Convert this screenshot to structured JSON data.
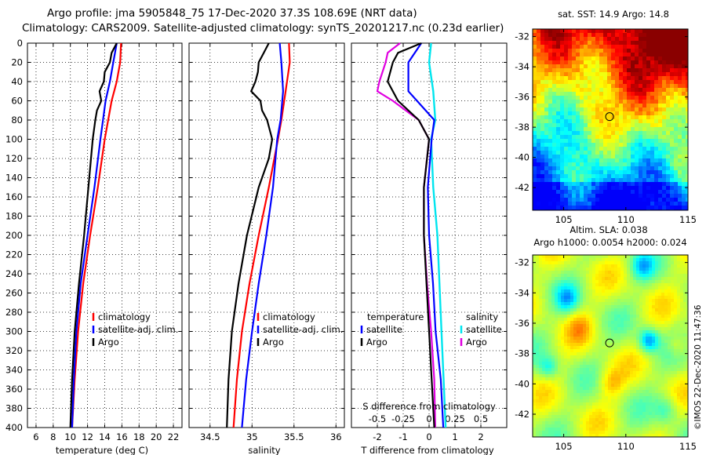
{
  "header": {
    "title_line1": "Argo profile: jma 5905848_75 17-Dec-2020 37.3S 108.69E (NRT data)",
    "title_line2": "Climatology: CARS2009. Satellite-adjusted climatology: synTS_20201217.nc (0.23d earlier)"
  },
  "colors": {
    "climatology": "#ff0000",
    "satellite": "#0000ff",
    "argo": "#000000",
    "salinity_satellite": "#00e5ee",
    "salinity_argo": "#e000e0"
  },
  "depth_ticks": [
    "0",
    "20",
    "40",
    "60",
    "80",
    "100",
    "120",
    "140",
    "160",
    "180",
    "200",
    "220",
    "240",
    "260",
    "280",
    "300",
    "320",
    "340",
    "360",
    "380",
    "400"
  ],
  "chart_data": [
    {
      "type": "line",
      "title": "Temperature profile",
      "xlabel": "temperature (deg C)",
      "ylabel": "depth",
      "xlim": [
        5,
        23
      ],
      "ylim": [
        400,
        0
      ],
      "xticks": [
        "6",
        "8",
        "10",
        "12",
        "14",
        "16",
        "18",
        "20",
        "22"
      ],
      "legend": [
        "climatology",
        "satellite-adj. clim.",
        "Argo"
      ],
      "series": [
        {
          "name": "climatology",
          "depth": [
            0,
            20,
            40,
            60,
            80,
            100,
            150,
            200,
            250,
            300,
            350,
            400
          ],
          "values": [
            15.9,
            15.8,
            15.4,
            14.8,
            14.4,
            14.0,
            13.2,
            12.3,
            11.5,
            10.9,
            10.5,
            10.2
          ]
        },
        {
          "name": "satellite-adj. clim.",
          "depth": [
            0,
            20,
            40,
            60,
            80,
            100,
            150,
            200,
            250,
            300,
            350,
            400
          ],
          "values": [
            15.4,
            15.0,
            14.6,
            14.1,
            13.8,
            13.5,
            12.8,
            12.0,
            11.2,
            10.7,
            10.4,
            10.2
          ]
        },
        {
          "name": "Argo",
          "depth": [
            0,
            10,
            20,
            30,
            40,
            50,
            60,
            70,
            80,
            100,
            120,
            150,
            200,
            250,
            300,
            350,
            400
          ],
          "values": [
            15.4,
            14.8,
            14.6,
            14.0,
            13.9,
            13.4,
            13.6,
            13.1,
            12.9,
            12.6,
            12.4,
            12.1,
            11.6,
            11.0,
            10.5,
            10.2,
            10.0
          ]
        }
      ]
    },
    {
      "type": "line",
      "title": "Salinity profile",
      "xlabel": "salinity",
      "ylabel": "depth",
      "xlim": [
        34.25,
        36.1
      ],
      "ylim": [
        400,
        0
      ],
      "xticks": [
        "34.5",
        "35",
        "35.5",
        "36"
      ],
      "legend": [
        "climatology",
        "satellite-adj. clim.",
        "Argo"
      ],
      "series": [
        {
          "name": "climatology",
          "depth": [
            0,
            20,
            50,
            80,
            100,
            150,
            200,
            250,
            300,
            350,
            400
          ],
          "values": [
            35.44,
            35.45,
            35.4,
            35.35,
            35.31,
            35.2,
            35.08,
            34.97,
            34.88,
            34.82,
            34.78
          ]
        },
        {
          "name": "satellite-adj. clim.",
          "depth": [
            0,
            20,
            50,
            80,
            100,
            150,
            200,
            250,
            300,
            350,
            400
          ],
          "values": [
            35.33,
            35.35,
            35.37,
            35.34,
            35.3,
            35.25,
            35.17,
            35.08,
            35.0,
            34.93,
            34.88
          ]
        },
        {
          "name": "Argo",
          "depth": [
            0,
            10,
            20,
            30,
            40,
            50,
            60,
            70,
            80,
            100,
            120,
            150,
            200,
            250,
            300,
            350,
            400
          ],
          "values": [
            35.2,
            35.14,
            35.08,
            35.07,
            35.04,
            34.99,
            35.1,
            35.12,
            35.18,
            35.24,
            35.2,
            35.08,
            34.94,
            34.84,
            34.76,
            34.72,
            34.7
          ]
        }
      ]
    },
    {
      "type": "line",
      "title": "Difference from climatology",
      "xlabel": "T difference from climatology",
      "xlabel_top": "S difference from climatology",
      "ylabel": "depth",
      "xlim": [
        -3,
        3
      ],
      "ylim": [
        400,
        0
      ],
      "xticks_T": [
        "-2",
        "-1",
        "0",
        "1",
        "2"
      ],
      "xticks_S": [
        "-0.5",
        "-0.25",
        "0",
        "0.25",
        "0.5"
      ],
      "legend_temperature_title": "temperature",
      "legend_salinity_title": "salinity",
      "legend": [
        "satellite",
        "Argo",
        "satellite",
        "Argo"
      ],
      "series": [
        {
          "name": "temperature satellite",
          "depth": [
            0,
            20,
            50,
            80,
            100,
            150,
            200,
            250,
            300,
            350,
            400
          ],
          "values": [
            -0.3,
            -0.8,
            -0.8,
            0.2,
            0.1,
            -0.05,
            0.0,
            0.15,
            0.25,
            0.45,
            0.55
          ]
        },
        {
          "name": "temperature Argo",
          "depth": [
            0,
            10,
            20,
            40,
            60,
            80,
            100,
            150,
            200,
            250,
            300,
            350,
            400
          ],
          "values": [
            -0.3,
            -1.2,
            -1.4,
            -1.6,
            -1.2,
            -0.4,
            0.0,
            -0.2,
            -0.2,
            -0.1,
            0.0,
            0.1,
            0.2
          ]
        },
        {
          "name": "salinity satellite",
          "depth": [
            0,
            20,
            50,
            80,
            100,
            150,
            200,
            250,
            300,
            350,
            400
          ],
          "values": [
            0.02,
            0.0,
            0.04,
            0.06,
            0.02,
            0.04,
            0.08,
            0.1,
            0.12,
            0.14,
            0.16
          ]
        },
        {
          "name": "salinity Argo",
          "depth": [
            0,
            10,
            20,
            40,
            50,
            60,
            80,
            100,
            150,
            200,
            250,
            300,
            350,
            400
          ],
          "values": [
            -0.28,
            -0.4,
            -0.42,
            -0.48,
            -0.5,
            -0.35,
            -0.1,
            0.0,
            -0.05,
            -0.05,
            -0.02,
            0.02,
            0.05,
            0.06
          ]
        }
      ]
    },
    {
      "type": "heatmap",
      "title": "sat. SST: 14.9  Argo: 14.8",
      "xlim": [
        102.5,
        115
      ],
      "ylim": [
        -43.5,
        -31.5
      ],
      "xticks": [
        "105",
        "110",
        "115"
      ],
      "yticks": [
        "-32",
        "-34",
        "-36",
        "-38",
        "-40",
        "-42"
      ],
      "marker": {
        "lon": 108.69,
        "lat": -37.3
      }
    },
    {
      "type": "heatmap",
      "title_line1": "Altim. SLA: 0.038",
      "title_line2": "Argo h1000: 0.0054 h2000: 0.024",
      "xlim": [
        102.5,
        115
      ],
      "ylim": [
        -43.5,
        -31.5
      ],
      "xticks": [
        "105",
        "110",
        "115"
      ],
      "yticks": [
        "-32",
        "-34",
        "-36",
        "-38",
        "-40",
        "-42"
      ],
      "marker": {
        "lon": 108.69,
        "lat": -37.3
      }
    }
  ],
  "footer": {
    "stamp": "©IMOS 22-Dec-2020 11:47:36"
  }
}
